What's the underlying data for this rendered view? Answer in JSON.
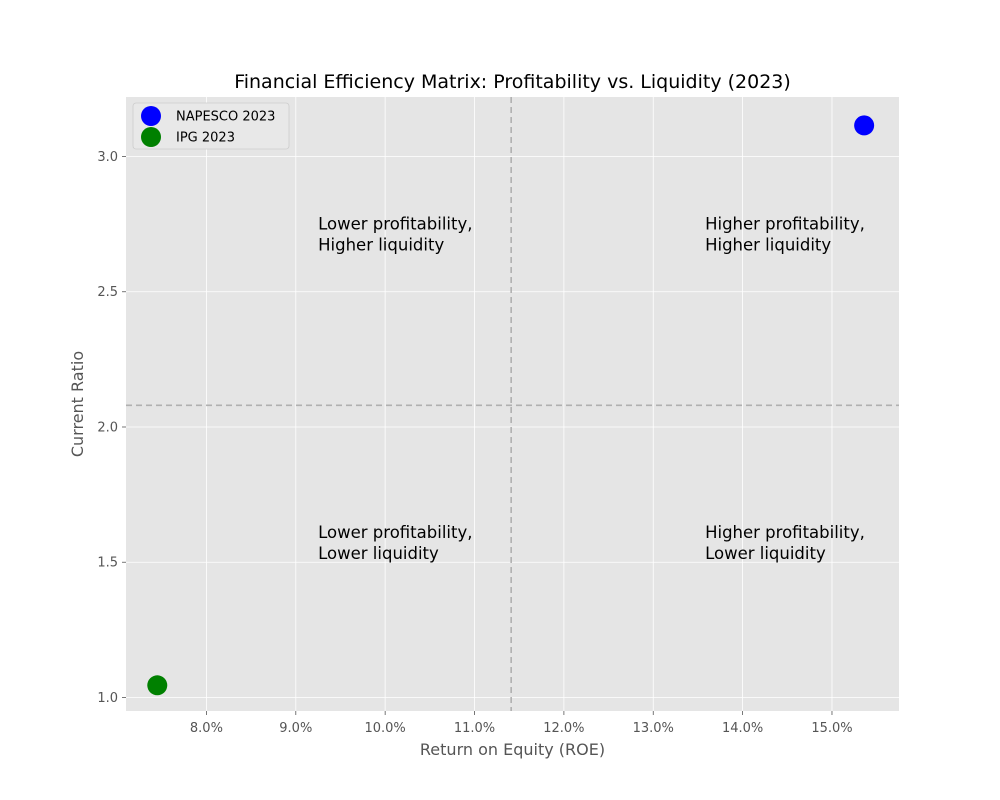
{
  "chart_data": {
    "type": "scatter",
    "title": "Financial Efficiency Matrix: Profitability vs. Liquidity (2023)",
    "xlabel": "Return on Equity (ROE)",
    "ylabel": "Current Ratio",
    "xlim": [
      0.071,
      0.1575
    ],
    "ylim": [
      0.95,
      3.22
    ],
    "x_ticks": [
      0.08,
      0.09,
      0.1,
      0.11,
      0.12,
      0.13,
      0.14,
      0.15
    ],
    "x_tick_labels": [
      "8.0%",
      "9.0%",
      "10.0%",
      "11.0%",
      "12.0%",
      "13.0%",
      "14.0%",
      "15.0%"
    ],
    "y_ticks": [
      1.0,
      1.5,
      2.0,
      2.5,
      3.0
    ],
    "y_tick_labels": [
      "1.0",
      "1.5",
      "2.0",
      "2.5",
      "3.0"
    ],
    "grid": true,
    "legend_position": "top-left",
    "series": [
      {
        "name": "NAPESCO 2023",
        "color": "#0000ff",
        "x": [
          0.1536
        ],
        "y": [
          3.115
        ]
      },
      {
        "name": "IPG 2023",
        "color": "#008000",
        "x": [
          0.0745
        ],
        "y": [
          1.045
        ]
      }
    ],
    "reference_lines": {
      "x": 0.1141,
      "y": 2.08,
      "color": "#b0b0b0",
      "style": "dashed"
    },
    "quadrant_labels": [
      {
        "lines": [
          "Lower profitability,",
          "Higher liquidity"
        ],
        "x": 0.0925,
        "y": 2.73
      },
      {
        "lines": [
          "Higher profitability,",
          "Higher liquidity"
        ],
        "x": 0.1358,
        "y": 2.73
      },
      {
        "lines": [
          "Lower profitability,",
          "Lower liquidity"
        ],
        "x": 0.0925,
        "y": 1.59
      },
      {
        "lines": [
          "Higher profitability,",
          "Lower liquidity"
        ],
        "x": 0.1358,
        "y": 1.59
      }
    ],
    "colors": {
      "plot_background": "#e5e5e5",
      "grid": "#ffffff",
      "tick": "#555555"
    }
  }
}
